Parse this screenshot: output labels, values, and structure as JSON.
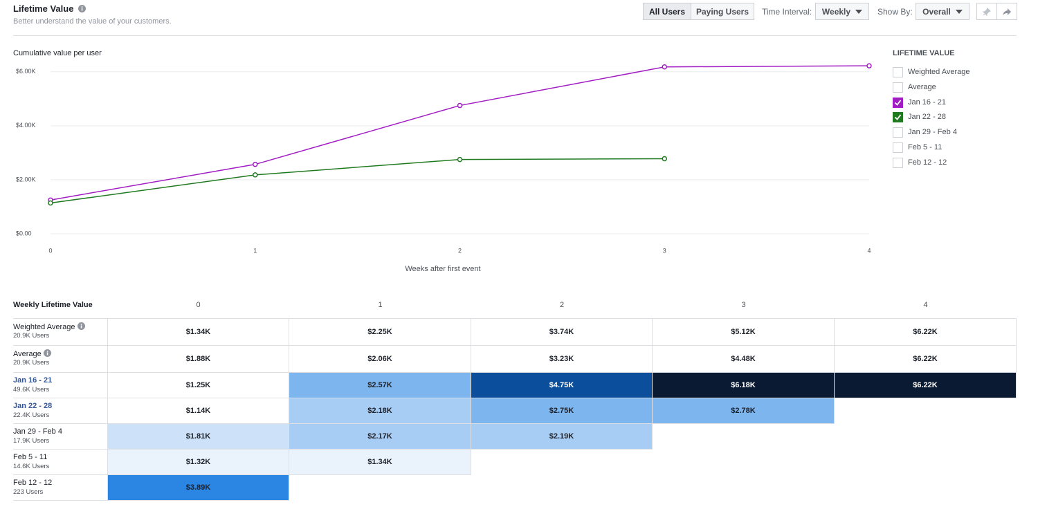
{
  "header": {
    "title": "Lifetime Value",
    "subtitle": "Better understand the value of your customers.",
    "tabs": [
      {
        "label": "All Users",
        "active": true
      },
      {
        "label": "Paying Users",
        "active": false
      }
    ],
    "time_interval_label": "Time Interval:",
    "time_interval": "Weekly",
    "show_by_label": "Show By:",
    "show_by": "Overall"
  },
  "chart_data": {
    "type": "line",
    "y_label": "Cumulative value per user",
    "x_label": "Weeks after first event",
    "x": [
      0,
      1,
      2,
      3,
      4
    ],
    "xlim": [
      0,
      4
    ],
    "xticks": [
      0,
      1,
      2,
      3,
      4
    ],
    "ylim": [
      0,
      6250
    ],
    "yticks": [
      {
        "value": 0,
        "label": "$0.00"
      },
      {
        "value": 2000,
        "label": "$2.00K"
      },
      {
        "value": 4000,
        "label": "$4.00K"
      },
      {
        "value": 6000,
        "label": "$6.00K"
      }
    ],
    "grid": true,
    "series": [
      {
        "name": "Jan 16 - 21",
        "color": "#a21cc4",
        "values": [
          1250,
          2570,
          4750,
          6180,
          6220
        ]
      },
      {
        "name": "Jan 22 - 28",
        "color": "#1f7a1f",
        "values": [
          1140,
          2180,
          2750,
          2780,
          null
        ]
      }
    ]
  },
  "legend": {
    "title": "LIFETIME VALUE",
    "items": [
      {
        "name": "Weighted Average",
        "checked": false
      },
      {
        "name": "Average",
        "checked": false
      },
      {
        "name": "Jan 16 - 21",
        "checked": true,
        "color": "#a21cc4"
      },
      {
        "name": "Jan 22 - 28",
        "checked": true,
        "color": "#1f7a1f"
      },
      {
        "name": "Jan 29 - Feb 4",
        "checked": false
      },
      {
        "name": "Feb 5 - 11",
        "checked": false
      },
      {
        "name": "Feb 12 - 12",
        "checked": false
      }
    ]
  },
  "table": {
    "title": "Weekly Lifetime Value",
    "columns": [
      0,
      1,
      2,
      3,
      4
    ],
    "rows": [
      {
        "label": "Weighted Average",
        "info": true,
        "highlight": false,
        "users": "20.9K Users",
        "cells": [
          "$1.34K",
          "$2.25K",
          "$3.74K",
          "$5.12K",
          "$6.22K"
        ],
        "fills": [
          "#ffffff",
          "#ffffff",
          "#ffffff",
          "#ffffff",
          "#ffffff"
        ]
      },
      {
        "label": "Average",
        "info": true,
        "highlight": false,
        "users": "20.9K Users",
        "cells": [
          "$1.88K",
          "$2.06K",
          "$3.23K",
          "$4.48K",
          "$6.22K"
        ],
        "fills": [
          "#ffffff",
          "#ffffff",
          "#ffffff",
          "#ffffff",
          "#ffffff"
        ]
      },
      {
        "label": "Jan 16 - 21",
        "info": false,
        "highlight": true,
        "users": "49.6K Users",
        "cells": [
          "$1.25K",
          "$2.57K",
          "$4.75K",
          "$6.18K",
          "$6.22K"
        ],
        "fills": [
          "#ffffff",
          "#7db5ef",
          "#0a4e9c",
          "#0b1a33",
          "#0b1a33"
        ]
      },
      {
        "label": "Jan 22 - 28",
        "info": false,
        "highlight": true,
        "users": "22.4K Users",
        "cells": [
          "$1.14K",
          "$2.18K",
          "$2.75K",
          "$2.78K"
        ],
        "fills": [
          "#ffffff",
          "#a7cdf5",
          "#7db5ef",
          "#7db5ef"
        ]
      },
      {
        "label": "Jan 29 - Feb 4",
        "info": false,
        "highlight": false,
        "users": "17.9K Users",
        "cells": [
          "$1.81K",
          "$2.17K",
          "$2.19K"
        ],
        "fills": [
          "#cde2f8",
          "#a7cdf5",
          "#a7cdf5"
        ]
      },
      {
        "label": "Feb 5 - 11",
        "info": false,
        "highlight": false,
        "users": "14.6K Users",
        "cells": [
          "$1.32K",
          "$1.34K"
        ],
        "fills": [
          "#eaf3fc",
          "#eaf3fc"
        ]
      },
      {
        "label": "Feb 12 - 12",
        "info": false,
        "highlight": false,
        "users": "223 Users",
        "cells": [
          "$3.89K"
        ],
        "fills": [
          "#2b86e3"
        ]
      }
    ]
  }
}
